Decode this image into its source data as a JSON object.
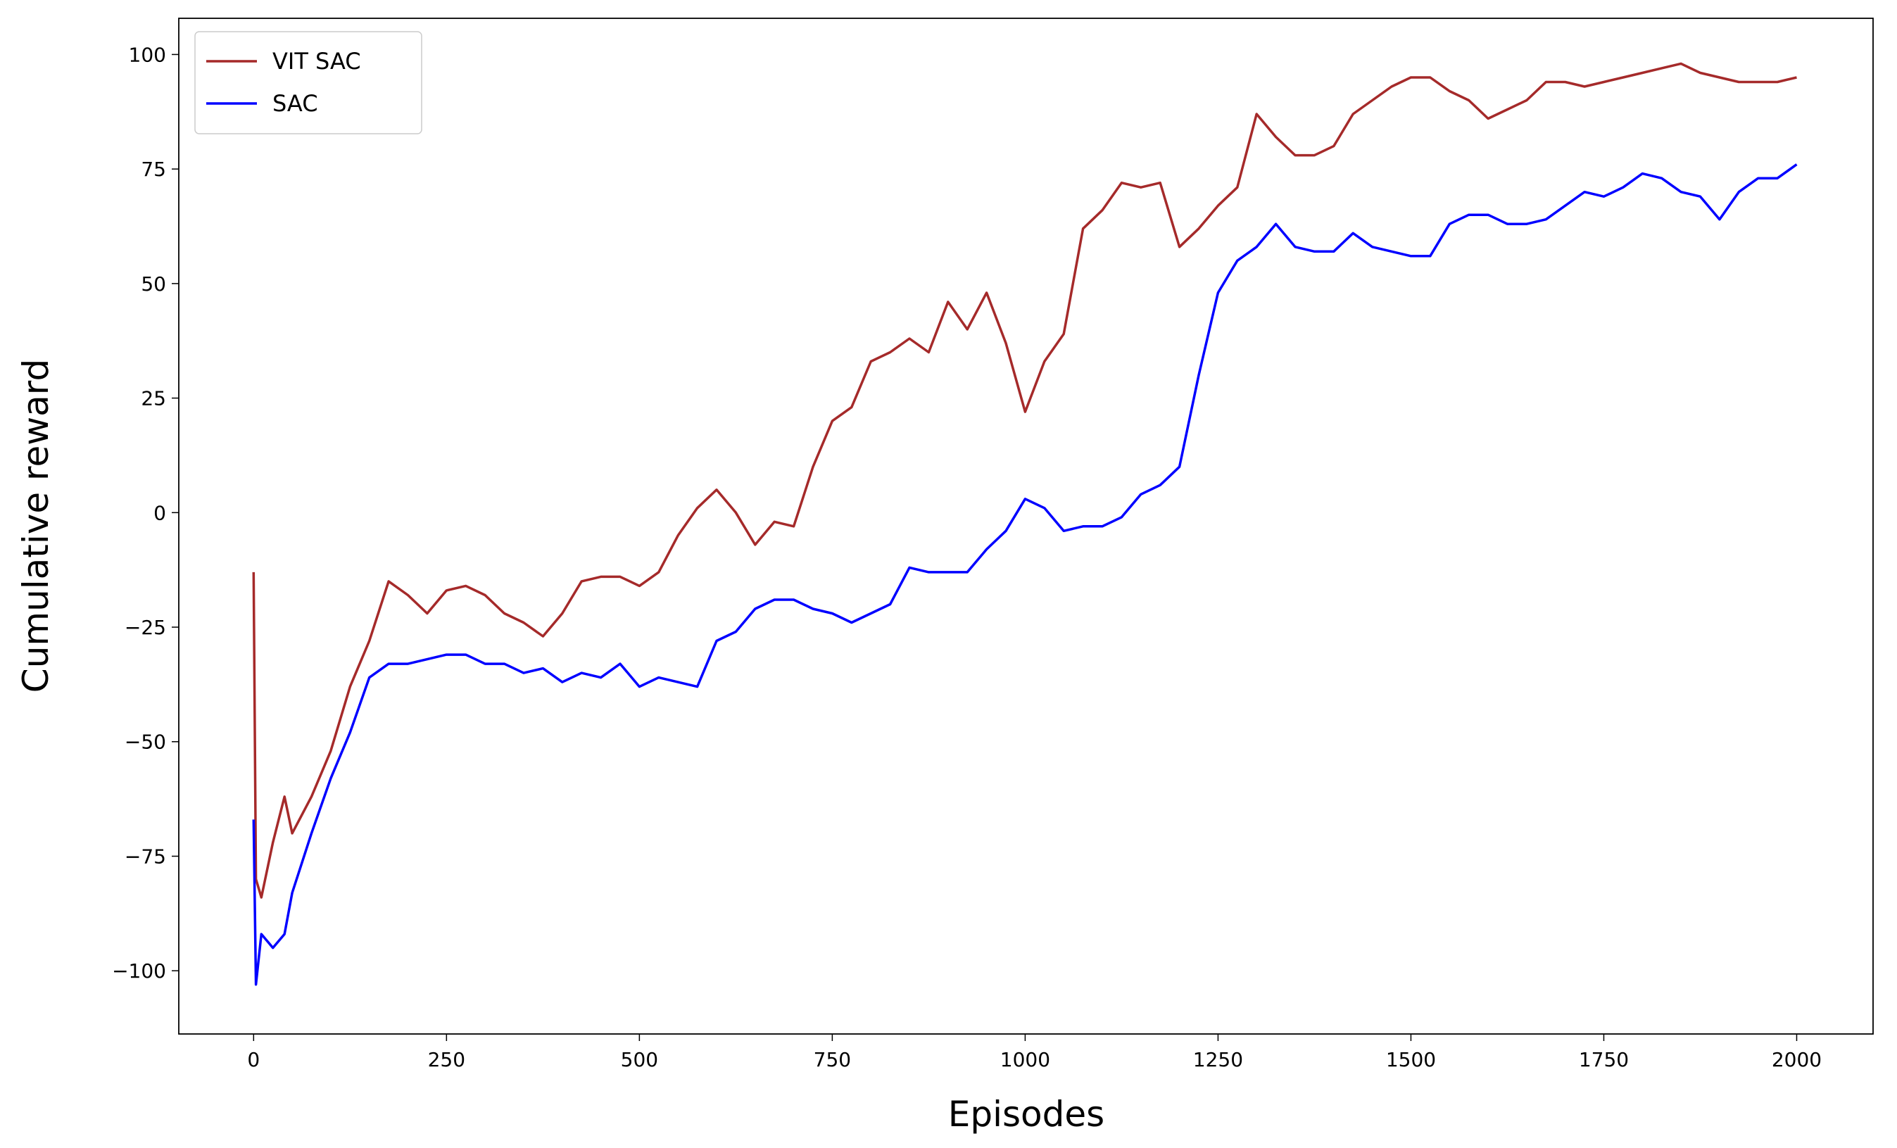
{
  "chart_data": {
    "type": "line",
    "xlabel": "Episodes",
    "ylabel": "Cumulative reward",
    "x": [
      0,
      3,
      10,
      25,
      40,
      50,
      75,
      100,
      125,
      150,
      175,
      200,
      225,
      250,
      275,
      300,
      325,
      350,
      375,
      400,
      425,
      450,
      475,
      500,
      525,
      550,
      575,
      600,
      625,
      650,
      675,
      700,
      725,
      750,
      775,
      800,
      825,
      850,
      875,
      900,
      925,
      950,
      975,
      1000,
      1025,
      1050,
      1075,
      1100,
      1125,
      1150,
      1175,
      1200,
      1225,
      1250,
      1275,
      1300,
      1325,
      1350,
      1375,
      1400,
      1425,
      1450,
      1475,
      1500,
      1525,
      1550,
      1575,
      1600,
      1625,
      1650,
      1675,
      1700,
      1725,
      1750,
      1775,
      1800,
      1825,
      1850,
      1875,
      1900,
      1925,
      1950,
      1975,
      2000
    ],
    "series": [
      {
        "name": "VIT SAC",
        "color": "#a52a2a",
        "values": [
          -13,
          -80,
          -84,
          -72,
          -62,
          -70,
          -62,
          -52,
          -38,
          -28,
          -15,
          -18,
          -22,
          -17,
          -16,
          -18,
          -22,
          -24,
          -27,
          -22,
          -15,
          -14,
          -14,
          -16,
          -13,
          -5,
          1,
          5,
          0,
          -7,
          -2,
          -3,
          10,
          20,
          23,
          33,
          35,
          38,
          35,
          46,
          40,
          48,
          37,
          22,
          33,
          39,
          62,
          66,
          72,
          71,
          72,
          58,
          62,
          67,
          71,
          87,
          82,
          78,
          78,
          80,
          87,
          90,
          93,
          95,
          95,
          92,
          90,
          86,
          88,
          90,
          94,
          94,
          93,
          94,
          95,
          96,
          97,
          98,
          96,
          95,
          94,
          94,
          94,
          95
        ]
      },
      {
        "name": "SAC",
        "color": "#0000ff",
        "values": [
          -67,
          -103,
          -92,
          -95,
          -92,
          -83,
          -70,
          -58,
          -48,
          -36,
          -33,
          -33,
          -32,
          -31,
          -31,
          -33,
          -33,
          -35,
          -34,
          -37,
          -35,
          -36,
          -33,
          -38,
          -36,
          -37,
          -38,
          -28,
          -26,
          -21,
          -19,
          -19,
          -21,
          -22,
          -24,
          -22,
          -20,
          -12,
          -13,
          -13,
          -13,
          -8,
          -4,
          3,
          1,
          -4,
          -3,
          -3,
          -1,
          4,
          6,
          10,
          30,
          48,
          55,
          58,
          63,
          58,
          57,
          57,
          61,
          58,
          57,
          56,
          56,
          63,
          65,
          65,
          63,
          63,
          64,
          67,
          70,
          69,
          71,
          74,
          73,
          70,
          69,
          64,
          70,
          73,
          73,
          76
        ]
      }
    ],
    "xlim": [
      -97,
      2099
    ],
    "ylim": [
      -113.8,
      107.9
    ],
    "xticks": [
      0,
      250,
      500,
      750,
      1000,
      1250,
      1500,
      1750,
      2000
    ],
    "yticks": [
      {
        "value": -100,
        "label": "−100"
      },
      {
        "value": -75,
        "label": "−75"
      },
      {
        "value": -50,
        "label": "−50"
      },
      {
        "value": -25,
        "label": "−25"
      },
      0,
      25,
      50,
      75,
      100
    ],
    "legend": "upper left",
    "grid": false
  }
}
